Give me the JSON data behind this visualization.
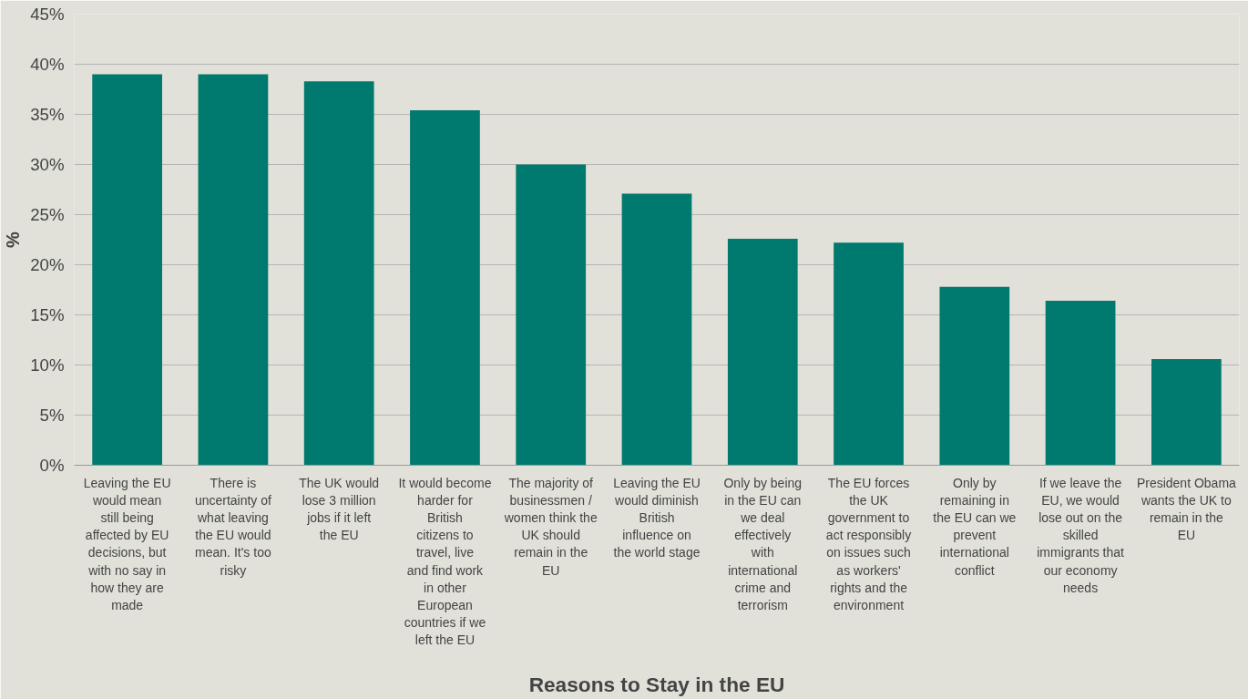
{
  "chart_data": {
    "type": "bar",
    "xlabel": "Reasons to Stay in the EU",
    "ylabel": "%",
    "categories": [
      "Leaving the EU would mean still being affected by EU decisions, but with no say in how they are made",
      "There is uncertainty of what leaving the EU would mean. It's too risky",
      "The UK would lose 3 million jobs if it left the EU",
      "It would become harder for British citizens to travel, live and find work in other European countries if we left the EU",
      "The majority of businessmen / women think the UK should remain in the EU",
      "Leaving the EU would diminish British influence on the world stage",
      "Only by being in the EU can we deal effectively with international crime and terrorism",
      "The EU forces the UK government to act responsibly on issues such as workers' rights and the environment",
      "Only by remaining in the EU can we prevent international conflict",
      "If we leave the EU, we would lose out on the skilled immigrants that our economy needs",
      "President Obama wants the UK to remain in the EU"
    ],
    "values": [
      39.0,
      39.0,
      38.3,
      35.4,
      30.0,
      27.1,
      22.6,
      22.2,
      17.8,
      16.4,
      10.6
    ],
    "color": "#007a6e",
    "ylim": [
      0,
      45
    ],
    "yticks": [
      {
        "value": 0,
        "label": "0%"
      },
      {
        "value": 5,
        "label": "5%"
      },
      {
        "value": 10,
        "label": "10%"
      },
      {
        "value": 15,
        "label": "15%"
      },
      {
        "value": 20,
        "label": "20%"
      },
      {
        "value": 25,
        "label": "25%"
      },
      {
        "value": 30,
        "label": "30%"
      },
      {
        "value": 35,
        "label": "35%"
      },
      {
        "value": 40,
        "label": "40%"
      },
      {
        "value": 45,
        "label": "45%"
      }
    ],
    "grid": "y"
  }
}
